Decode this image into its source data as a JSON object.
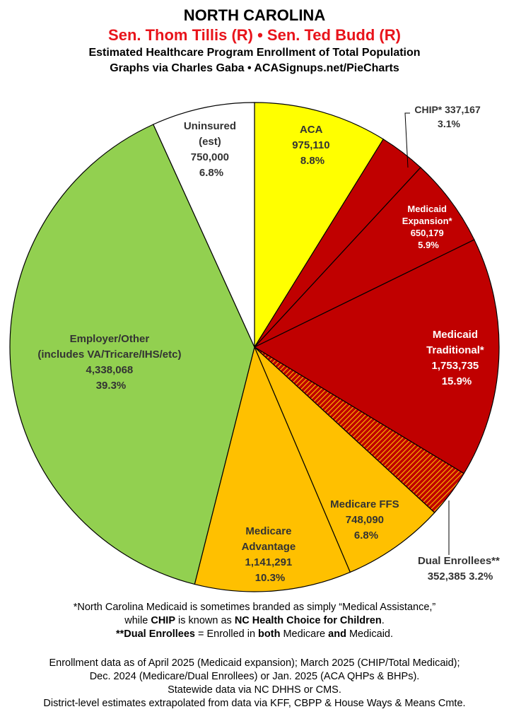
{
  "header": {
    "title": "NORTH CAROLINA",
    "senators": "Sen. Thom Tillis (R) • Sen. Ted Budd (R)",
    "line1": "Estimated Healthcare Program Enrollment of Total Population",
    "line2": "Graphs via Charles Gaba   •   ACASignups.net/PieCharts"
  },
  "chart_data": {
    "type": "pie",
    "title": "Estimated Healthcare Program Enrollment of Total Population",
    "slices": [
      {
        "label": "ACA",
        "value": 975110,
        "value_text": "975,110",
        "percent": "8.8%",
        "color": "#ffff00"
      },
      {
        "label": "CHIP*",
        "value": 337167,
        "value_text": "337,167",
        "percent": "3.1%",
        "color": "#c00000"
      },
      {
        "label": "Medicaid Expansion*",
        "value": 650179,
        "value_text": "650,179",
        "percent": "5.9%",
        "color": "#c00000"
      },
      {
        "label": "Medicaid Traditional*",
        "value": 1753735,
        "value_text": "1,753,735",
        "percent": "15.9%",
        "color": "#c00000"
      },
      {
        "label": "Dual Enrollees**",
        "value": 352385,
        "value_text": "352,385",
        "percent": "3.2%",
        "color": "#c75a00"
      },
      {
        "label": "Medicare FFS",
        "value": 748090,
        "value_text": "748,090",
        "percent": "6.8%",
        "color": "#ffc000"
      },
      {
        "label": "Medicare Advantage",
        "value": 1141291,
        "value_text": "1,141,291",
        "percent": "10.3%",
        "color": "#ffc000"
      },
      {
        "label": "Employer/Other (includes VA/Tricare/IHS/etc)",
        "value": 4338068,
        "value_text": "4,338,068",
        "percent": "39.3%",
        "color": "#92d050"
      },
      {
        "label": "Uninsured (est)",
        "value": 750000,
        "value_text": "750,000",
        "percent": "6.8%",
        "color": "#ffffff"
      }
    ],
    "legend": "none"
  },
  "labels": {
    "aca": [
      "ACA",
      "975,110",
      "8.8%"
    ],
    "chip": [
      "CHIP* 337,167",
      "3.1%"
    ],
    "med_exp": [
      "Medicaid",
      "Expansion*",
      "650,179",
      "5.9%"
    ],
    "med_trad": [
      "Medicaid",
      "Traditional*",
      "1,753,735",
      "15.9%"
    ],
    "dual": [
      "Dual Enrollees**",
      "352,385 3.2%"
    ],
    "mffs": [
      "Medicare FFS",
      "748,090",
      "6.8%"
    ],
    "ma": [
      "Medicare",
      "Advantage",
      "1,141,291",
      "10.3%"
    ],
    "emp": [
      "Employer/Other",
      "(includes VA/Tricare/IHS/etc)",
      "4,338,068",
      "39.3%"
    ],
    "unins": [
      "Uninsured",
      "(est)",
      "750,000",
      "6.8%"
    ]
  },
  "footnotes": {
    "f1": "*North Carolina Medicaid is sometimes branded as simply “Medical Assistance,”",
    "f2a": "while ",
    "f2b": "CHIP",
    "f2c": " is known as ",
    "f2d": "NC Health Choice for Children",
    "f2e": ".",
    "f3a": "**Dual Enrollees",
    "f3b": " = Enrolled in ",
    "f3c": "both",
    "f3d": " Medicare ",
    "f3e": "and",
    "f3f": " Medicaid."
  },
  "sources": [
    "Enrollment data as of April 2025 (Medicaid expansion); March 2025 (CHIP/Total Medicaid);",
    "Dec. 2024 (Medicare/Dual Enrollees) or Jan. 2025 (ACA QHPs & BHPs).",
    "Statewide data via NC DHHS or CMS.",
    "District-level estimates extrapolated from data via KFF, CBPP & House Ways & Means Cmte."
  ]
}
